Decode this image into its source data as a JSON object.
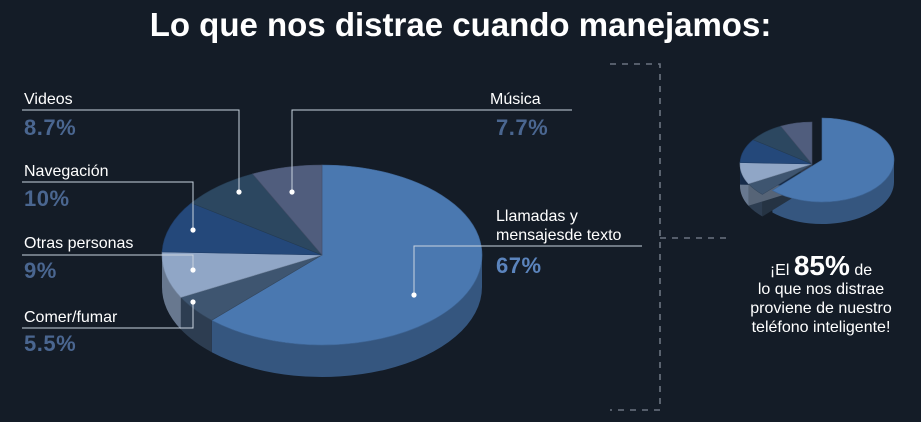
{
  "title": "Lo que nos distrae cuando manejamos:",
  "chart_data": {
    "type": "pie",
    "title": "Lo que nos distrae cuando manejamos:",
    "slices": [
      {
        "label": "Llamadas y mensajesde texto",
        "value": 67,
        "display": "67%",
        "color": "#4a78b0"
      },
      {
        "label": "Comer/fumar",
        "value": 5.5,
        "display": "5.5%",
        "color": "#3e5570"
      },
      {
        "label": "Otras personas",
        "value": 9,
        "display": "9%",
        "color": "#90a6c6"
      },
      {
        "label": "Navegación",
        "value": 10,
        "display": "10%",
        "color": "#24487a"
      },
      {
        "label": "Videos",
        "value": 8.7,
        "display": "8.7%",
        "color": "#2c4760"
      },
      {
        "label": "Música",
        "value": 7.7,
        "display": "7.7%",
        "color": "#505d7d"
      }
    ]
  },
  "labels": {
    "videos": "Videos",
    "videos_pct": "8.7%",
    "navegacion": "Navegación",
    "navegacion_pct": "10%",
    "otras": "Otras personas",
    "otras_pct": "9%",
    "comer": "Comer/fumar",
    "comer_pct": "5.5%",
    "musica": "Música",
    "musica_pct": "7.7%",
    "llamadas_1": "Llamadas y",
    "llamadas_2": "mensajesde texto",
    "llamadas_pct": "67%"
  },
  "note": {
    "prefix": "¡El ",
    "big": "85%",
    "suffix": " de",
    "line2": "lo que nos distrae",
    "line3": "proviene de nuestro",
    "line4": "teléfono inteligente!"
  },
  "colors": {
    "background": "#141c27",
    "leader": "#c9d3df",
    "bracket": "#6b7380"
  }
}
